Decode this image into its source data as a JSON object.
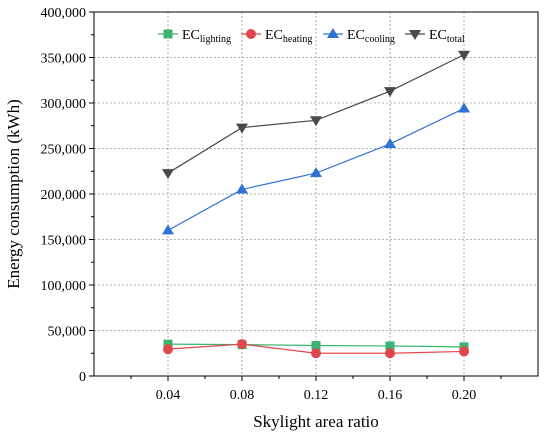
{
  "chart_data": {
    "type": "line",
    "xlabel": "Skylight area ratio",
    "ylabel": "Energy consumption (kWh)",
    "x": [
      0.04,
      0.08,
      0.12,
      0.16,
      0.2
    ],
    "x_tick_labels": [
      "0.04",
      "0.08",
      "0.12",
      "0.16",
      "0.20"
    ],
    "xlim": [
      0.0,
      0.24
    ],
    "ylim": [
      0,
      400000
    ],
    "y_ticks": [
      0,
      50000,
      100000,
      150000,
      200000,
      250000,
      300000,
      350000,
      400000
    ],
    "y_tick_labels": [
      "0",
      "50,000",
      "100,000",
      "150,000",
      "200,000",
      "250,000",
      "300,000",
      "350,000",
      "400,000"
    ],
    "grid": true,
    "legend_position": "top",
    "series": [
      {
        "name": "EC",
        "sub": "lighting",
        "marker": "square",
        "color": "#3cb371",
        "values": [
          35000,
          34500,
          33500,
          33000,
          32000
        ]
      },
      {
        "name": "EC",
        "sub": "heating",
        "marker": "circle",
        "color": "#e0474c",
        "values": [
          29500,
          35000,
          25000,
          25000,
          27000
        ]
      },
      {
        "name": "EC",
        "sub": "cooling",
        "marker": "triangle-up",
        "color": "#2f73d6",
        "values": [
          160000,
          205000,
          223000,
          255000,
          294000
        ]
      },
      {
        "name": "EC",
        "sub": "total",
        "marker": "triangle-down",
        "color": "#4a4a4a",
        "values": [
          223000,
          273000,
          281000,
          313000,
          353000
        ]
      }
    ]
  }
}
